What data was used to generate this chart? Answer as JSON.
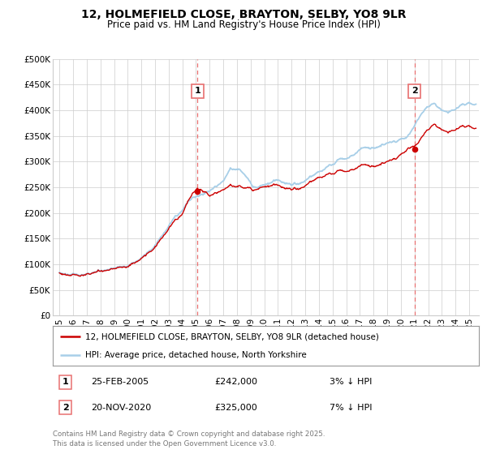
{
  "title": "12, HOLMEFIELD CLOSE, BRAYTON, SELBY, YO8 9LR",
  "subtitle": "Price paid vs. HM Land Registry's House Price Index (HPI)",
  "legend_line1": "12, HOLMEFIELD CLOSE, BRAYTON, SELBY, YO8 9LR (detached house)",
  "legend_line2": "HPI: Average price, detached house, North Yorkshire",
  "annotation1": {
    "num": "1",
    "date": "25-FEB-2005",
    "price": "£242,000",
    "pct": "3% ↓ HPI",
    "x_year": 2005.1
  },
  "annotation2": {
    "num": "2",
    "date": "20-NOV-2020",
    "price": "£325,000",
    "pct": "7% ↓ HPI",
    "x_year": 2021.0
  },
  "footer": "Contains HM Land Registry data © Crown copyright and database right 2025.\nThis data is licensed under the Open Government Licence v3.0.",
  "hpi_color": "#a8cfe8",
  "price_color": "#cc0000",
  "annotation_vline_color": "#e87070",
  "grid_color": "#cccccc",
  "background_color": "#ffffff",
  "ylim": [
    0,
    500000
  ],
  "yticks": [
    0,
    50000,
    100000,
    150000,
    200000,
    250000,
    300000,
    350000,
    400000,
    450000,
    500000
  ],
  "xlim_start": 1994.5,
  "xlim_end": 2025.7,
  "xticks": [
    1995,
    1996,
    1997,
    1998,
    1999,
    2000,
    2001,
    2002,
    2003,
    2004,
    2005,
    2006,
    2007,
    2008,
    2009,
    2010,
    2011,
    2012,
    2013,
    2014,
    2015,
    2016,
    2017,
    2018,
    2019,
    2020,
    2021,
    2022,
    2023,
    2024,
    2025
  ]
}
